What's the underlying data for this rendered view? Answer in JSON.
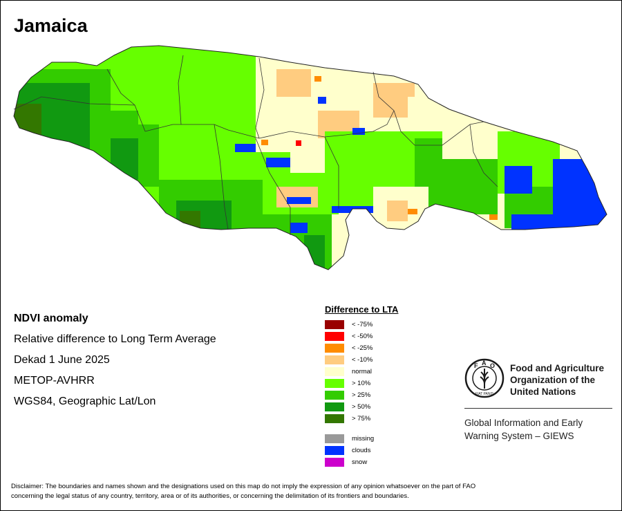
{
  "map": {
    "title": "Jamaica"
  },
  "info": {
    "heading": "NDVI anomaly",
    "line1": "Relative difference to Long Term Average",
    "line2": "Dekad 1 June 2025",
    "line3": "METOP-AVHRR",
    "line4": "WGS84, Geographic Lat/Lon"
  },
  "legend": {
    "title": "Difference to LTA",
    "classes": [
      {
        "label": "< -75%",
        "color": "#990000"
      },
      {
        "label": "< -50%",
        "color": "#ff0000"
      },
      {
        "label": "< -25%",
        "color": "#ff8c00"
      },
      {
        "label": "< -10%",
        "color": "#ffcc80"
      },
      {
        "label": "normal",
        "color": "#ffffcc"
      },
      {
        "label": "> 10%",
        "color": "#66ff00"
      },
      {
        "label": "> 25%",
        "color": "#33cc00"
      },
      {
        "label": "> 50%",
        "color": "#119911"
      },
      {
        "label": "> 75%",
        "color": "#337700"
      }
    ],
    "other": [
      {
        "label": "missing",
        "color": "#999999"
      },
      {
        "label": "clouds",
        "color": "#0033ff"
      },
      {
        "label": "snow",
        "color": "#cc00cc"
      }
    ]
  },
  "fao": {
    "name_line1": "Food and Agriculture",
    "name_line2": "Organization of the",
    "name_line3": "United Nations",
    "emblem_text": "FAO",
    "motto": "FIAT PANIS",
    "giews_line1": "Global Information and Early",
    "giews_line2": "Warning System – GIEWS"
  },
  "disclaimer": {
    "line1": "Disclaimer: The boundaries and names shown and the designations used on this map do not imply the expression of any opinion whatsoever on the part of FAO",
    "line2": "concerning the legal status of any country, territory, area or of its authorities, or concerning the delimitation of its frontiers and boundaries."
  }
}
